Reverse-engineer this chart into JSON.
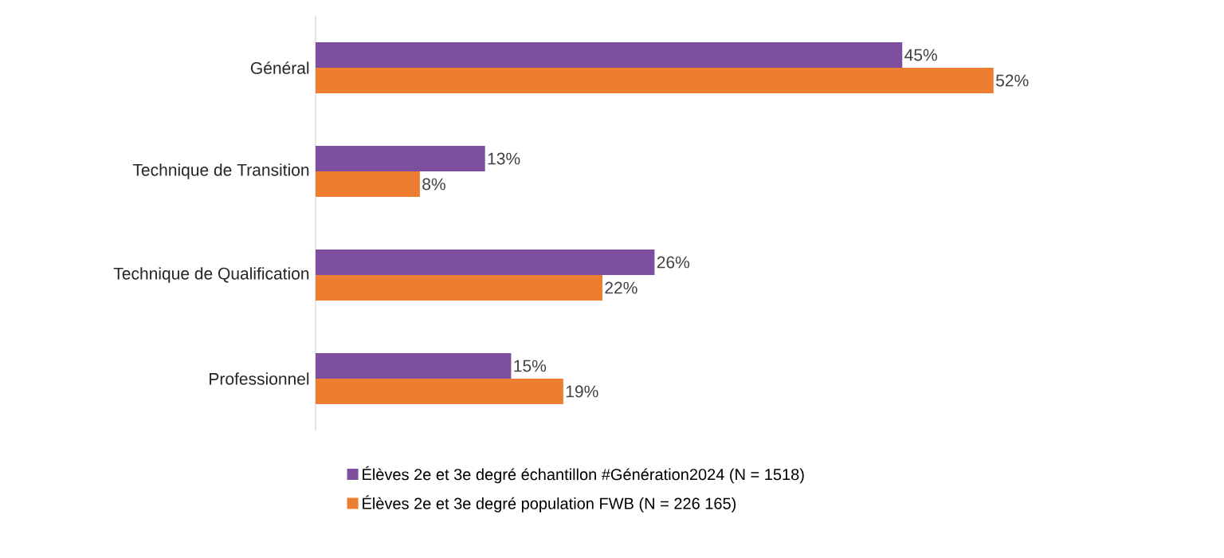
{
  "chart_data": {
    "type": "bar",
    "orientation": "horizontal",
    "categories": [
      "Général",
      "Technique de Transition",
      "Technique de Qualification",
      "Professionnel"
    ],
    "series": [
      {
        "name": "Élèves 2e et 3e degré échantillon #Génération2024 (N = 1518)",
        "color": "#7f4f9f",
        "values": [
          45,
          13,
          26,
          15
        ],
        "value_labels": [
          "45%",
          "13%",
          "26%",
          "15%"
        ]
      },
      {
        "name": "Élèves 2e et 3e degré population FWB (N = 226 165)",
        "color": "#ed7d31",
        "values": [
          52,
          8,
          22,
          19
        ],
        "value_labels": [
          "52%",
          "8%",
          "22%",
          "19%"
        ]
      }
    ],
    "legend": "bottom"
  }
}
